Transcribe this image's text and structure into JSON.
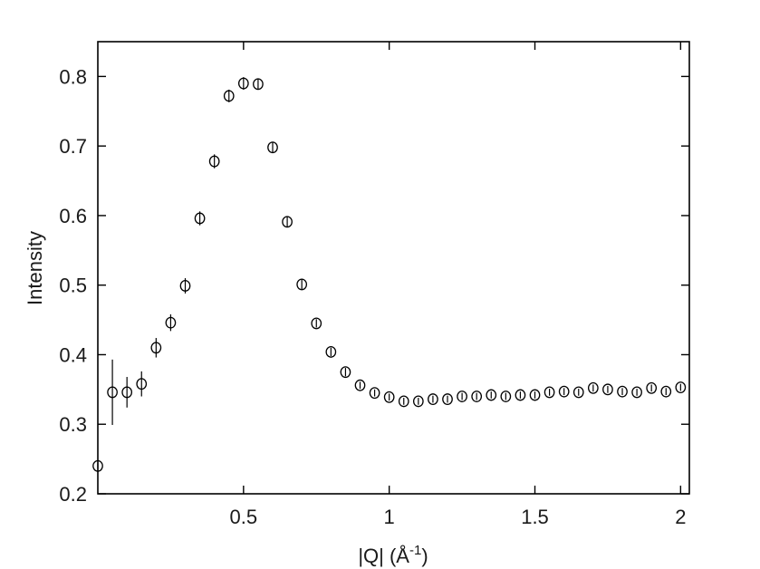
{
  "chart_data": {
    "type": "scatter",
    "title": "",
    "xlabel_main": "|Q| (Å",
    "xlabel_sup": "-1",
    "xlabel_end": ")",
    "ylabel": "Intensity",
    "xlim": [
      0.0,
      2.03
    ],
    "ylim": [
      0.2,
      0.85
    ],
    "xticks": [
      0.5,
      1,
      1.5,
      2
    ],
    "xtick_labels": [
      "0.5",
      "1",
      "1.5",
      "2"
    ],
    "yticks": [
      0.2,
      0.3,
      0.4,
      0.5,
      0.6,
      0.7,
      0.8
    ],
    "ytick_labels": [
      "0.2",
      "0.3",
      "0.4",
      "0.5",
      "0.6",
      "0.7",
      "0.8"
    ],
    "grid": false,
    "marker": "open-circle-with-error-bars",
    "colors": {
      "marker": "#000000",
      "axes": "#000000"
    },
    "series": [
      {
        "x": [
          0.0,
          0.05,
          0.1,
          0.15,
          0.2,
          0.25,
          0.3,
          0.35,
          0.4,
          0.45,
          0.5,
          0.55,
          0.6,
          0.65,
          0.7,
          0.75,
          0.8,
          0.85,
          0.9,
          0.95,
          1.0,
          1.05,
          1.1,
          1.15,
          1.2,
          1.25,
          1.3,
          1.35,
          1.4,
          1.45,
          1.5,
          1.55,
          1.6,
          1.65,
          1.7,
          1.75,
          1.8,
          1.85,
          1.9,
          1.95,
          2.0
        ],
        "y": [
          0.24,
          0.346,
          0.346,
          0.358,
          0.41,
          0.446,
          0.499,
          0.596,
          0.678,
          0.772,
          0.79,
          0.789,
          0.698,
          0.591,
          0.501,
          0.445,
          0.404,
          0.375,
          0.356,
          0.345,
          0.339,
          0.333,
          0.333,
          0.336,
          0.336,
          0.34,
          0.34,
          0.342,
          0.34,
          0.342,
          0.342,
          0.346,
          0.347,
          0.346,
          0.352,
          0.35,
          0.347,
          0.346,
          0.352,
          0.347,
          0.353
        ],
        "yerr": [
          0.004,
          0.047,
          0.022,
          0.018,
          0.014,
          0.012,
          0.011,
          0.01,
          0.01,
          0.009,
          0.009,
          0.008,
          0.008,
          0.007,
          0.007,
          0.006,
          0.006,
          0.006,
          0.005,
          0.005,
          0.005,
          0.005,
          0.005,
          0.005,
          0.005,
          0.005,
          0.005,
          0.005,
          0.005,
          0.005,
          0.005,
          0.005,
          0.005,
          0.005,
          0.005,
          0.005,
          0.005,
          0.005,
          0.005,
          0.005,
          0.005
        ]
      }
    ]
  }
}
